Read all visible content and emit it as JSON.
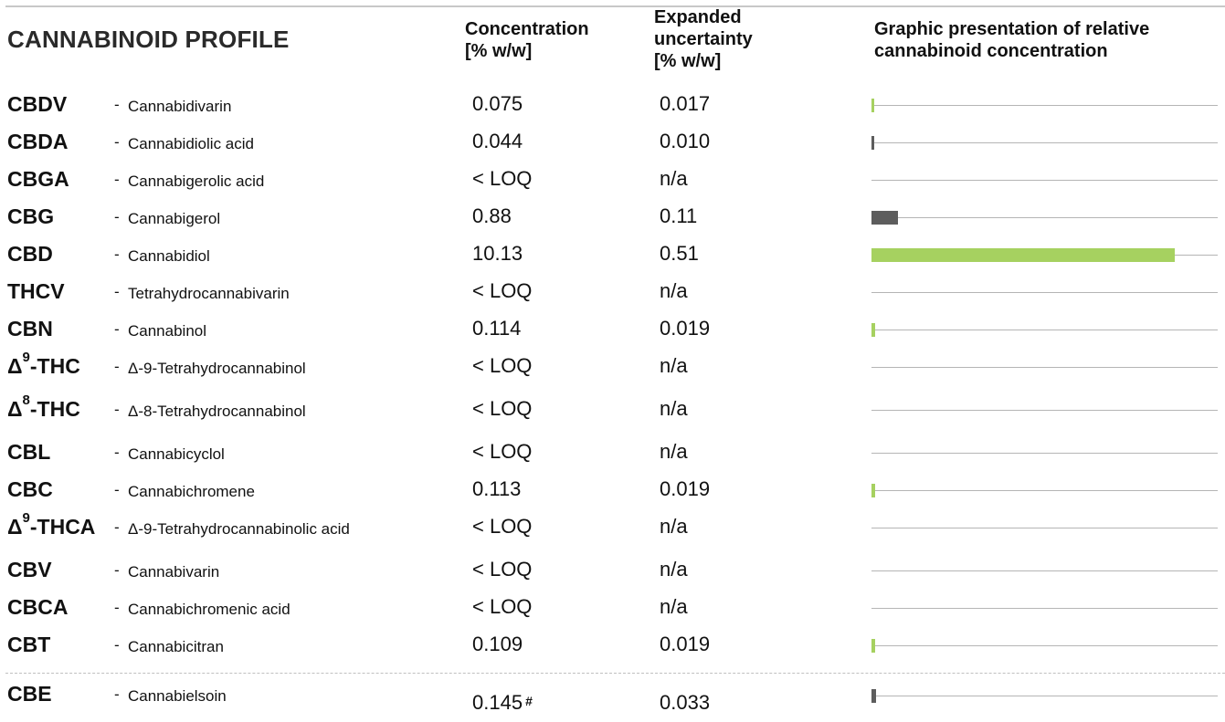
{
  "title": "CANNABINOID PROFILE",
  "headers": {
    "concentration": [
      "Concentration",
      "[% w/w]"
    ],
    "uncertainty": [
      "Expanded",
      "uncertainty",
      "[% w/w]"
    ],
    "graph": [
      "Graphic presentation of relative",
      "cannabinoid concentration"
    ]
  },
  "colors": {
    "green": "#a6d160",
    "grey": "#5d5d5d",
    "track": "#b5b5b5"
  },
  "graph_full_scale_percent": 11.55,
  "rows": [
    {
      "abbr": "CBDV",
      "name": "Cannabidivarin",
      "conc": "0.075",
      "unc": "0.017",
      "value": 0.075,
      "bar": "green"
    },
    {
      "abbr": "CBDA",
      "name": "Cannabidiolic acid",
      "conc": "0.044",
      "unc": "0.010",
      "value": 0.044,
      "bar": "grey"
    },
    {
      "abbr": "CBGA",
      "name": "Cannabigerolic acid",
      "conc": "< LOQ",
      "unc": "n/a",
      "value": 0,
      "bar": "none"
    },
    {
      "abbr": "CBG",
      "name": "Cannabigerol",
      "conc": "0.88",
      "unc": "0.11",
      "value": 0.88,
      "bar": "grey"
    },
    {
      "abbr": "CBD",
      "name": "Cannabidiol",
      "conc": "10.13",
      "unc": "0.51",
      "value": 10.13,
      "bar": "green"
    },
    {
      "abbr": "THCV",
      "name": "Tetrahydrocannabivarin",
      "conc": "< LOQ",
      "unc": "n/a",
      "value": 0,
      "bar": "none"
    },
    {
      "abbr": "CBN",
      "name": "Cannabinol",
      "conc": "0.114",
      "unc": "0.019",
      "value": 0.114,
      "bar": "green"
    },
    {
      "abbr_pre": "Δ",
      "abbr_sup": "9",
      "abbr": "-THC",
      "name": "Δ-9-Tetrahydrocannabinol",
      "conc": "< LOQ",
      "unc": "n/a",
      "value": 0,
      "bar": "none"
    },
    {
      "abbr_pre": "Δ",
      "abbr_sup": "8",
      "abbr": "-THC",
      "name": "Δ-8-Tetrahydrocannabinol",
      "conc": "< LOQ",
      "unc": "n/a",
      "value": 0,
      "bar": "none"
    },
    {
      "abbr": "CBL",
      "name": "Cannabicyclol",
      "conc": "< LOQ",
      "unc": "n/a",
      "value": 0,
      "bar": "none"
    },
    {
      "abbr": "CBC",
      "name": "Cannabichromene",
      "conc": "0.113",
      "unc": "0.019",
      "value": 0.113,
      "bar": "green"
    },
    {
      "abbr_pre": "Δ",
      "abbr_sup": "9",
      "abbr": "-THCA",
      "name": "Δ-9-Tetrahydrocannabinolic acid",
      "conc": "< LOQ",
      "unc": "n/a",
      "value": 0,
      "bar": "none"
    },
    {
      "abbr": "CBV",
      "name": "Cannabivarin",
      "conc": "< LOQ",
      "unc": "n/a",
      "value": 0,
      "bar": "none"
    },
    {
      "abbr": "CBCA",
      "name": "Cannabichromenic acid",
      "conc": "< LOQ",
      "unc": "n/a",
      "value": 0,
      "bar": "none"
    },
    {
      "abbr": "CBT",
      "name": "Cannabicitran",
      "conc": "0.109",
      "unc": "0.019",
      "value": 0.109,
      "bar": "green"
    },
    {
      "abbr": "CBE",
      "name": "Cannabielsoin",
      "conc": "0.145",
      "conc_note": "#",
      "unc": "0.033",
      "value": 0.145,
      "bar": "grey"
    }
  ]
}
